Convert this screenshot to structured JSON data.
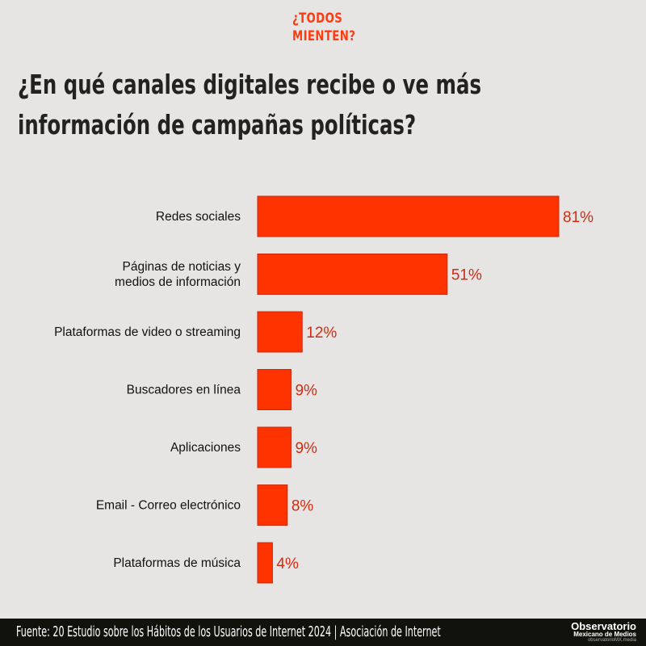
{
  "brand": {
    "line1": "¿TODOS",
    "line2": "MIENTEN?"
  },
  "footer": {
    "source": "Fuente: 20 Estudio sobre los Hábitos de los Usuarios de Internet 2024  |  Asociación de Internet",
    "logo_line1": "Observatorio",
    "logo_line2": "Mexicano de Medios",
    "logo_line3": "observatorioMX.media"
  },
  "colors": {
    "bar": "#ff3300",
    "value_label": "#d42a10"
  },
  "chart_data": {
    "type": "bar",
    "orientation": "horizontal",
    "title": "¿En qué canales digitales recibe o ve más información de campañas políticas?",
    "categories": [
      [
        "Redes sociales"
      ],
      [
        "Páginas de noticias y",
        "medios de información"
      ],
      [
        "Plataformas de video o streaming"
      ],
      [
        "Buscadores en línea"
      ],
      [
        "Aplicaciones"
      ],
      [
        "Email - Correo electrónico"
      ],
      [
        "Plataformas de música"
      ]
    ],
    "values": [
      81,
      51,
      12,
      9,
      9,
      8,
      4
    ],
    "value_labels": [
      "81%",
      "51%",
      "12%",
      "9%",
      "9%",
      "8%",
      "4%"
    ],
    "xlim": [
      0,
      81
    ],
    "xlabel": "",
    "ylabel": "",
    "grid": false
  }
}
